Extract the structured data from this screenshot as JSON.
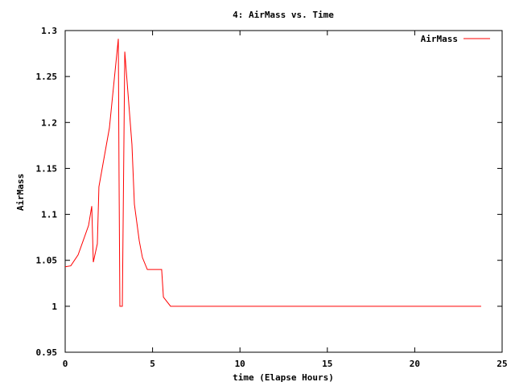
{
  "chart_data": {
    "type": "line",
    "title": "4: AirMass vs. Time",
    "x_label": "time (Elapse Hours)",
    "y_label": "AirMass",
    "xlim": [
      0,
      25
    ],
    "xticks": [
      0,
      5,
      10,
      15,
      20,
      25
    ],
    "ylim": [
      0.95,
      1.3
    ],
    "yticks": [
      0.95,
      1,
      1.05,
      1.1,
      1.15,
      1.2,
      1.25,
      1.3
    ],
    "grid": false,
    "legend": "top-right",
    "series": [
      {
        "name": "AirMass",
        "color": "#ff0000",
        "x": [
          0,
          0.32,
          0.74,
          1.06,
          1.34,
          1.52,
          1.61,
          1.84,
          1.93,
          2.53,
          3.04,
          3.08,
          3.13,
          3.27,
          3.41,
          3.82,
          3.96,
          4.24,
          4.42,
          4.7,
          5.52,
          5.62,
          6.03,
          23.8
        ],
        "values": [
          1.043,
          1.044,
          1.056,
          1.073,
          1.088,
          1.109,
          1.048,
          1.068,
          1.13,
          1.194,
          1.291,
          1.147,
          1.0,
          1.0,
          1.277,
          1.176,
          1.111,
          1.071,
          1.053,
          1.04,
          1.04,
          1.01,
          1.0,
          1.0
        ]
      }
    ]
  }
}
